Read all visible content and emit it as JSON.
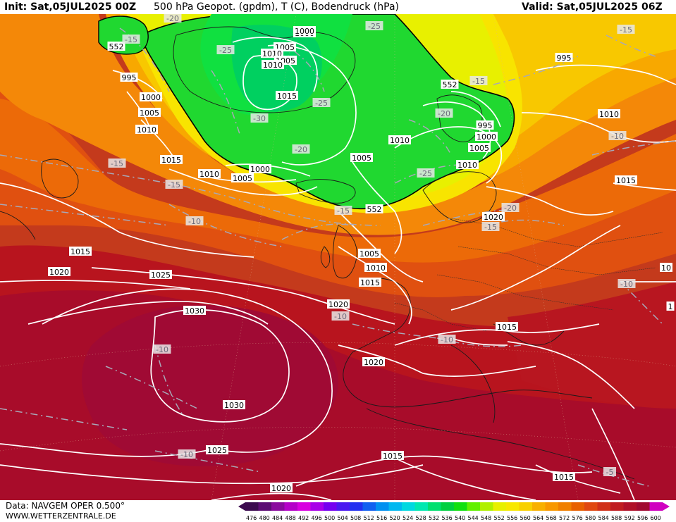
{
  "header": {
    "init": "Init: Sat,05JUL2025 00Z",
    "title": "500 hPa Geopot. (gpdm), T (C), Bodendruck (hPa)",
    "valid": "Valid: Sat,05JUL2025 06Z"
  },
  "footer": {
    "data_source": "Data: NAVGEM OPER 0.500°",
    "credit": "WWW.WETTERZENTRALE.DE"
  },
  "colorbar": {
    "values": [
      "476",
      "480",
      "484",
      "488",
      "492",
      "496",
      "500",
      "504",
      "508",
      "512",
      "516",
      "520",
      "524",
      "528",
      "532",
      "536",
      "540",
      "544",
      "548",
      "552",
      "556",
      "560",
      "564",
      "568",
      "572",
      "576",
      "580",
      "584",
      "588",
      "592",
      "596",
      "600"
    ],
    "colors": [
      "#3b0a4f",
      "#5c0c74",
      "#8a0a9e",
      "#b400c8",
      "#d800e0",
      "#a800e8",
      "#7400f0",
      "#4a18f0",
      "#2230f0",
      "#1060f0",
      "#0090f0",
      "#00b8f0",
      "#00d8e0",
      "#00e8b0",
      "#00e070",
      "#00d040",
      "#10e010",
      "#60f000",
      "#b0f000",
      "#e8f000",
      "#f8e800",
      "#f8d000",
      "#f8b000",
      "#f89800",
      "#f08000",
      "#e86000",
      "#e04810",
      "#d03018",
      "#c01c20",
      "#b01028",
      "#a00a30",
      "#d000c0"
    ]
  },
  "pressure_labels": [
    {
      "text": "1000"
    },
    {
      "text": "1005"
    },
    {
      "text": "1010"
    },
    {
      "text": "552"
    },
    {
      "text": "995"
    },
    {
      "text": "1000"
    },
    {
      "text": "1005"
    },
    {
      "text": "1010"
    },
    {
      "text": "1015"
    },
    {
      "text": "1015"
    },
    {
      "text": "1020"
    },
    {
      "text": "1025"
    },
    {
      "text": "1030"
    },
    {
      "text": "1030"
    },
    {
      "text": "1025"
    },
    {
      "text": "1020"
    },
    {
      "text": "1020"
    },
    {
      "text": "1020"
    },
    {
      "text": "1015"
    },
    {
      "text": "1015"
    },
    {
      "text": "1015"
    },
    {
      "text": "1010"
    },
    {
      "text": "1005"
    },
    {
      "text": "1010"
    },
    {
      "text": "1000"
    },
    {
      "text": "552"
    },
    {
      "text": "1005"
    },
    {
      "text": "1010"
    },
    {
      "text": "1005"
    },
    {
      "text": "1000"
    },
    {
      "text": "1010"
    },
    {
      "text": "1015"
    },
    {
      "text": "1005"
    },
    {
      "text": "1010"
    },
    {
      "text": "1000"
    },
    {
      "text": "995"
    },
    {
      "text": "1005"
    },
    {
      "text": "552"
    },
    {
      "text": "1010"
    },
    {
      "text": "1015"
    },
    {
      "text": "995"
    },
    {
      "text": "1020"
    },
    {
      "text": "1015"
    },
    {
      "text": "1015"
    },
    {
      "text": "10"
    },
    {
      "text": "1"
    }
  ],
  "temperature_labels": [
    {
      "text": "-20"
    },
    {
      "text": "-15"
    },
    {
      "text": "-25"
    },
    {
      "text": "-25"
    },
    {
      "text": "-25"
    },
    {
      "text": "-30"
    },
    {
      "text": "-20"
    },
    {
      "text": "-15"
    },
    {
      "text": "-15"
    },
    {
      "text": "-10"
    },
    {
      "text": "-15"
    },
    {
      "text": "-20"
    },
    {
      "text": "-15"
    },
    {
      "text": "-20"
    },
    {
      "text": "-15"
    },
    {
      "text": "-25"
    },
    {
      "text": "-10"
    },
    {
      "text": "-10"
    },
    {
      "text": "-10"
    },
    {
      "text": "-10"
    },
    {
      "text": "-10"
    },
    {
      "text": "-5"
    },
    {
      "text": "-15"
    },
    {
      "text": "-10"
    }
  ]
}
